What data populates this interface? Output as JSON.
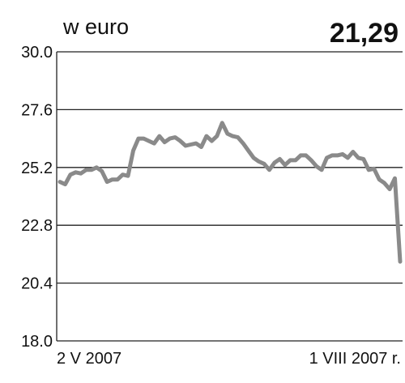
{
  "header": {
    "unit": "w euro",
    "last_value": "21,29"
  },
  "colors": {
    "line": "#8a8a8a",
    "grid": "#222222",
    "text": "#111111"
  },
  "chart_data": {
    "type": "line",
    "title": "",
    "xlabel": "",
    "ylabel": "w euro",
    "ylim": [
      18.0,
      30.0
    ],
    "yticks": [
      "30.0",
      "27.6",
      "25.2",
      "22.8",
      "20.4",
      "18.0"
    ],
    "x_start_label": "2 V 2007",
    "x_end_label": "1 VIII 2007 r.",
    "grid": "horizontal",
    "series": [
      {
        "values": [
          24.6,
          24.5,
          24.9,
          25.0,
          24.95,
          25.1,
          25.1,
          25.2,
          25.05,
          24.6,
          24.7,
          24.7,
          24.9,
          24.85,
          25.9,
          26.4,
          26.4,
          26.3,
          26.2,
          26.5,
          26.25,
          26.4,
          26.45,
          26.3,
          26.1,
          26.15,
          26.2,
          26.05,
          26.5,
          26.3,
          26.5,
          27.05,
          26.6,
          26.5,
          26.45,
          26.2,
          25.9,
          25.6,
          25.45,
          25.35,
          25.1,
          25.4,
          25.55,
          25.3,
          25.5,
          25.5,
          25.7,
          25.7,
          25.5,
          25.25,
          25.1,
          25.6,
          25.7,
          25.7,
          25.75,
          25.6,
          25.85,
          25.6,
          25.55,
          25.1,
          25.15,
          24.7,
          24.55,
          24.3,
          24.75,
          21.29
        ]
      }
    ]
  }
}
